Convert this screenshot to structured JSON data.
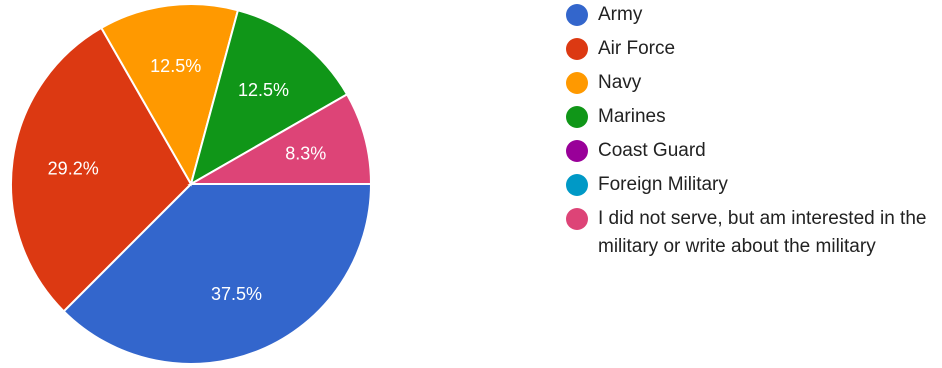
{
  "chart_data": {
    "type": "pie",
    "categories": [
      "Army",
      "Air Force",
      "Navy",
      "Marines",
      "Coast Guard",
      "Foreign Military",
      "I did not serve, but am interested in the military or write about the military"
    ],
    "values": [
      37.5,
      29.2,
      12.5,
      12.5,
      0,
      0,
      8.3
    ],
    "value_labels": [
      "37.5%",
      "29.2%",
      "12.5%",
      "12.5%",
      "",
      "",
      "8.3%"
    ],
    "colors": [
      "#3366cc",
      "#dc3912",
      "#ff9900",
      "#109618",
      "#990099",
      "#0099c6",
      "#dd4477"
    ],
    "start_angle_deg": 0,
    "direction": "clockwise",
    "legend_position": "right",
    "title": ""
  }
}
